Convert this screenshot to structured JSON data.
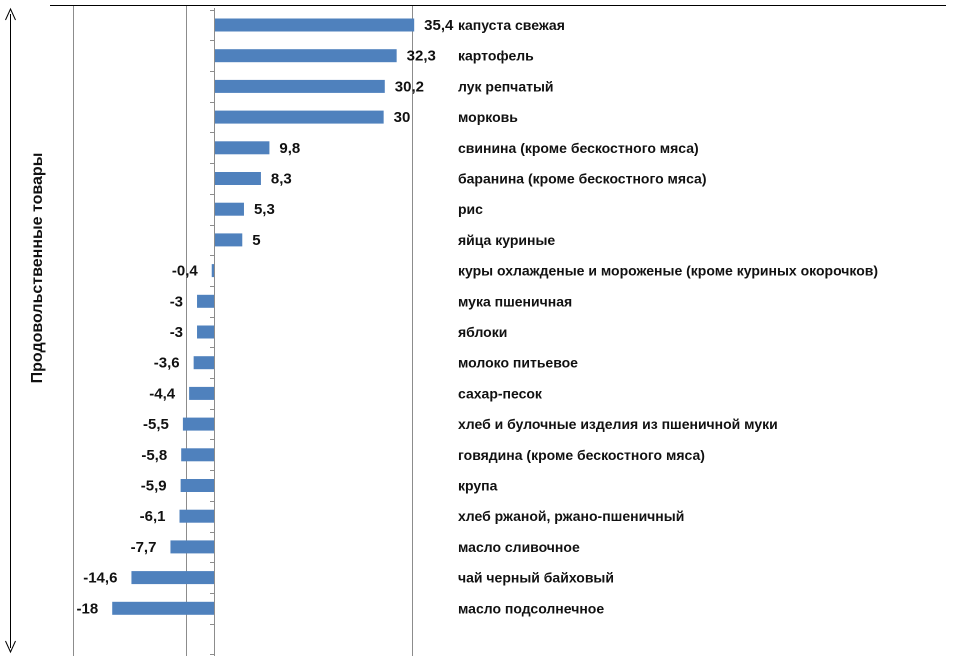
{
  "chart_data": {
    "type": "bar",
    "orientation": "horizontal",
    "ylabel": "Продовольственные товары",
    "bar_color": "#4f81bd",
    "grid": true,
    "categories": [
      "капуста свежая",
      "картофель",
      "лук репчатый",
      "морковь",
      "свинина (кроме бескостного мяса)",
      "баранина (кроме бескостного мяса)",
      "рис",
      "яйца куриные",
      "куры охлажденые и мороженые (кроме куриных окорочков)",
      "мука пшеничная",
      "яблоки",
      "молоко питьевое",
      "сахар-песок",
      "хлеб и булочные изделия из пшеничной муки",
      "говядина (кроме бескостного мяса)",
      "крупа",
      "хлеб ржаной, ржано-пшеничный",
      "масло сливочное",
      "чай черный байховый",
      "масло подсолнечное"
    ],
    "values": [
      35.4,
      32.3,
      30.2,
      30,
      9.8,
      8.3,
      5.3,
      5,
      -0.4,
      -3,
      -3,
      -3.6,
      -4.4,
      -5.5,
      -5.8,
      -5.9,
      -6.1,
      -7.7,
      -14.6,
      -18
    ],
    "value_labels": [
      "35,4",
      "32,3",
      "30,2",
      "30",
      "9,8",
      "8,3",
      "5,3",
      "5",
      "-0,4",
      "-3",
      "-3",
      "-3,6",
      "-4,4",
      "-5,5",
      "-5,8",
      "-5,9",
      "-6,1",
      "-7,7",
      "-14,6",
      "-18"
    ]
  }
}
